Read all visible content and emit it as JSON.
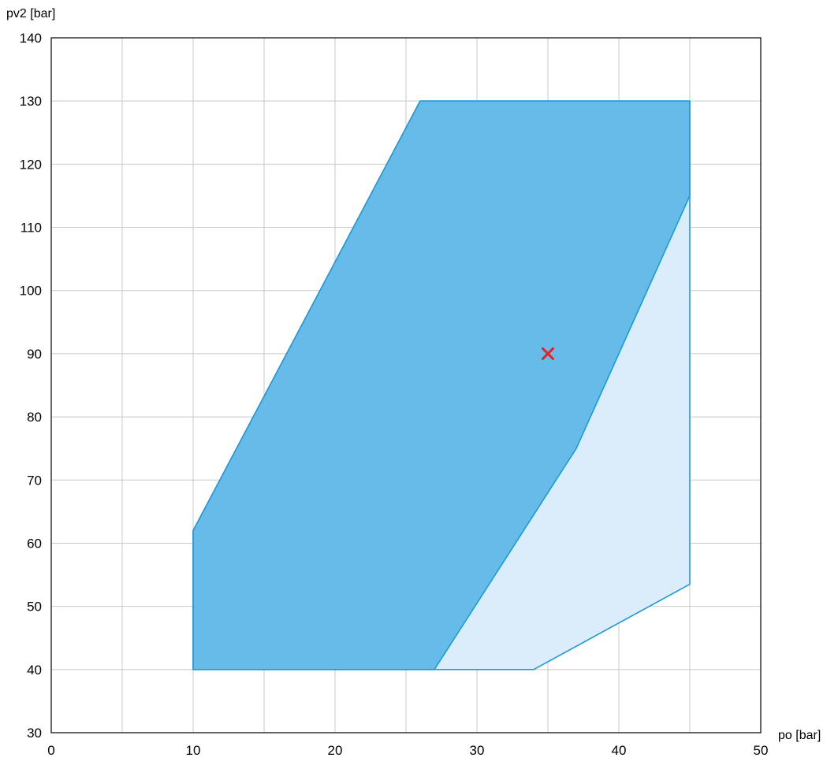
{
  "chart_data": {
    "type": "area",
    "xlabel": "po [bar]",
    "ylabel": "pv2 [bar]",
    "xlim": [
      0,
      50
    ],
    "ylim": [
      30,
      140
    ],
    "x_ticks": [
      0,
      10,
      20,
      30,
      40,
      50
    ],
    "y_ticks": [
      30,
      40,
      50,
      60,
      70,
      80,
      90,
      100,
      110,
      120,
      130,
      140
    ],
    "x_minor_grid": [
      5,
      15,
      25,
      35,
      45
    ],
    "grid": true,
    "series": [
      {
        "kind": "polygon",
        "x": [
          10,
          27,
          34,
          45,
          45,
          26,
          10
        ],
        "y": [
          40,
          40,
          40,
          53.5,
          130,
          130,
          62
        ],
        "fill": "#dbecfa",
        "stroke": "#1e9ad8"
      },
      {
        "kind": "polygon",
        "x": [
          10,
          27,
          37,
          45,
          45,
          26,
          10
        ],
        "y": [
          40,
          40,
          75,
          115,
          130,
          130,
          62
        ],
        "fill": "#66bbe8",
        "stroke": "#1e9ad8"
      }
    ],
    "marker": {
      "x": 35,
      "y": 90,
      "symbol": "x",
      "color": "#e8202a"
    }
  }
}
